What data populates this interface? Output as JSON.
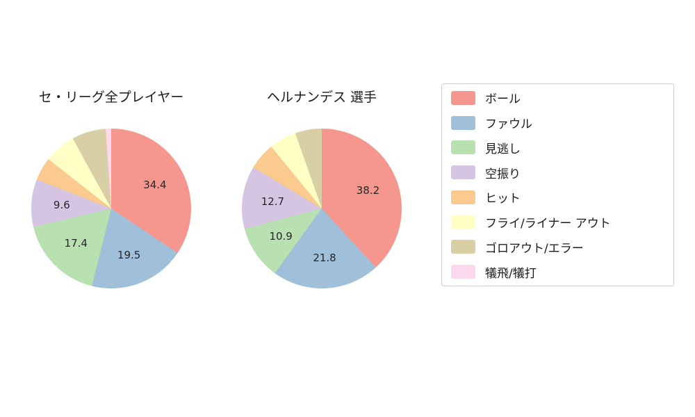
{
  "legend": {
    "items": [
      {
        "label": "ボール",
        "color": "#f5978e"
      },
      {
        "label": "ファウル",
        "color": "#a0bfd8"
      },
      {
        "label": "見逃し",
        "color": "#b8e0b0"
      },
      {
        "label": "空振り",
        "color": "#d5c4e2"
      },
      {
        "label": "ヒット",
        "color": "#faca8f"
      },
      {
        "label": "フライ/ライナー アウト",
        "color": "#ffffc5"
      },
      {
        "label": "ゴロアウト/エラー",
        "color": "#d8cfa6"
      },
      {
        "label": "犠飛/犠打",
        "color": "#fbd8ec"
      }
    ]
  },
  "chart_data": [
    {
      "type": "pie",
      "title": "セ・リーグ全プレイヤー",
      "start_angle": "top",
      "direction": "clockwise",
      "legend_position": "right",
      "categories": [
        "ボール",
        "ファウル",
        "見逃し",
        "空振り",
        "ヒット",
        "フライ/ライナー アウト",
        "ゴロアウト/エラー",
        "犠飛/犠打"
      ],
      "values": [
        34.4,
        19.5,
        17.4,
        9.6,
        4.7,
        6.4,
        6.9,
        1.1
      ],
      "slice_labels": [
        "34.4",
        "19.5",
        "17.4",
        "9.6",
        "",
        "",
        "",
        ""
      ]
    },
    {
      "type": "pie",
      "title": "ヘルナンデス 選手",
      "start_angle": "top",
      "direction": "clockwise",
      "legend_position": "right",
      "categories": [
        "ボール",
        "ファウル",
        "見逃し",
        "空振り",
        "ヒット",
        "フライ/ライナー アウト",
        "ゴロアウト/エラー",
        "犠飛/犠打"
      ],
      "values": [
        38.2,
        21.8,
        10.9,
        12.7,
        5.5,
        5.5,
        5.4,
        0.0
      ],
      "slice_labels": [
        "38.2",
        "21.8",
        "10.9",
        "12.7",
        "",
        "",
        "",
        ""
      ]
    }
  ]
}
